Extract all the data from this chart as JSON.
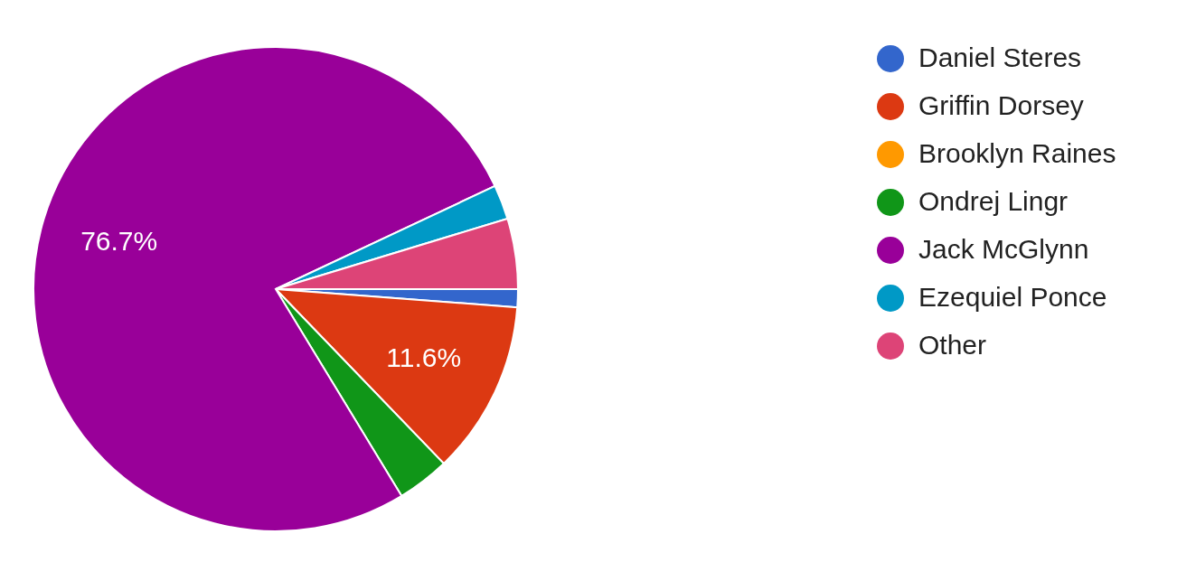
{
  "chart_data": {
    "type": "pie",
    "categories": [
      "Daniel Steres",
      "Griffin Dorsey",
      "Brooklyn Raines",
      "Ondrej Lingr",
      "Jack McGlynn",
      "Ezequiel Ponce",
      "Other"
    ],
    "values": [
      1.2,
      11.6,
      0,
      3.5,
      76.7,
      2.3,
      4.7
    ],
    "colors": [
      "#3366cc",
      "#dc3912",
      "#ff9900",
      "#109618",
      "#990099",
      "#0099c6",
      "#dd4477"
    ],
    "value_labels": [
      null,
      "11.6%",
      null,
      null,
      "76.7%",
      null,
      null
    ],
    "legend": "right"
  }
}
